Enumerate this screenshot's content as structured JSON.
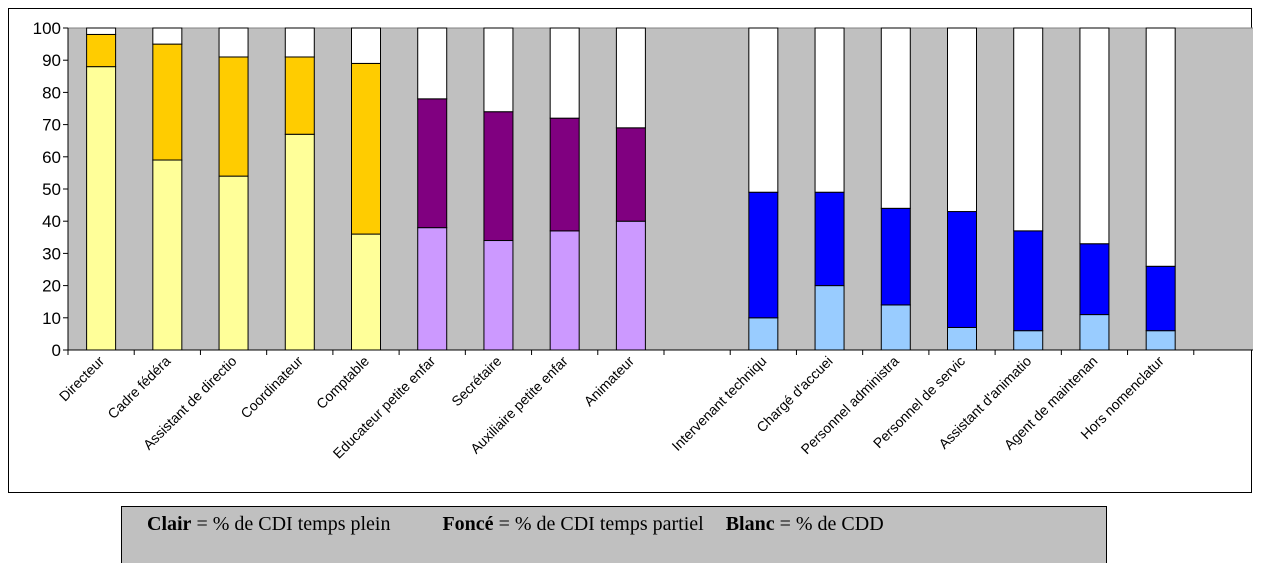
{
  "chart_data": {
    "type": "bar",
    "stacked": true,
    "categories": [
      "Directeur",
      "Cadre fédéral",
      "Assistant de direction",
      "Coordinateur",
      "Comptable",
      "Educateur petite enfance",
      "Secrétaire",
      "Auxiliaire petite enfance",
      "Animateur",
      "Intervenant technique",
      "Chargé d'accueil",
      "Personnel administratif",
      "Personnel de service",
      "Assistant d'animation",
      "Agent de maintenance",
      "Hors nomenclature"
    ],
    "category_labels_visible": [
      "Directeur",
      "Cadre fédéra",
      "Assistant de directio",
      "Coordinateur",
      "Comptable",
      "Educateur petite enfar",
      "Secrétaire",
      "Auxiliaire petite enfar",
      "Animateur",
      "Intervenant techniqu",
      "Chargé d'accuei",
      "Personnel administra",
      "Personnel de servic",
      "Assistant d'animatio",
      "Agent de maintenan",
      "Hors nomenclatur"
    ],
    "bar_slots": [
      1,
      2,
      3,
      4,
      5,
      6,
      7,
      8,
      9,
      11,
      12,
      13,
      14,
      15,
      16,
      17
    ],
    "slot_count": 18,
    "series": [
      {
        "key": "clair",
        "values": [
          88,
          59,
          54,
          67,
          36,
          38,
          34,
          37,
          40,
          10,
          20,
          14,
          7,
          6,
          11,
          6
        ]
      },
      {
        "key": "fonce",
        "values": [
          10,
          36,
          37,
          24,
          53,
          40,
          40,
          35,
          29,
          39,
          29,
          30,
          36,
          31,
          22,
          20
        ]
      },
      {
        "key": "blanc",
        "values": [
          2,
          5,
          9,
          9,
          11,
          22,
          26,
          28,
          31,
          51,
          51,
          56,
          57,
          63,
          67,
          74
        ]
      }
    ],
    "colors": {
      "clair": [
        "#ffff99",
        "#ffff99",
        "#ffff99",
        "#ffff99",
        "#ffff99",
        "#cc99ff",
        "#cc99ff",
        "#cc99ff",
        "#cc99ff",
        "#99ccff",
        "#99ccff",
        "#99ccff",
        "#99ccff",
        "#99ccff",
        "#99ccff",
        "#99ccff"
      ],
      "fonce": [
        "#ffcc00",
        "#ffcc00",
        "#ffcc00",
        "#ffcc00",
        "#ffcc00",
        "#800080",
        "#800080",
        "#800080",
        "#800080",
        "#0000ff",
        "#0000ff",
        "#0000ff",
        "#0000ff",
        "#0000ff",
        "#0000ff",
        "#0000ff"
      ],
      "blanc": "#ffffff",
      "plot_background": "#c0c0c0"
    },
    "ylim": [
      0,
      100
    ],
    "yticks": [
      0,
      10,
      20,
      30,
      40,
      50,
      60,
      70,
      80,
      90,
      100
    ],
    "grid": false,
    "title": "",
    "xlabel": "",
    "ylabel": ""
  },
  "legend": {
    "clair_term": "Clair",
    "clair_desc": " = % de CDI temps plein",
    "fonce_term": "Foncé",
    "fonce_desc": " = % de CDI temps partiel",
    "blanc_term": "Blanc",
    "blanc_desc": " = % de CDD"
  }
}
